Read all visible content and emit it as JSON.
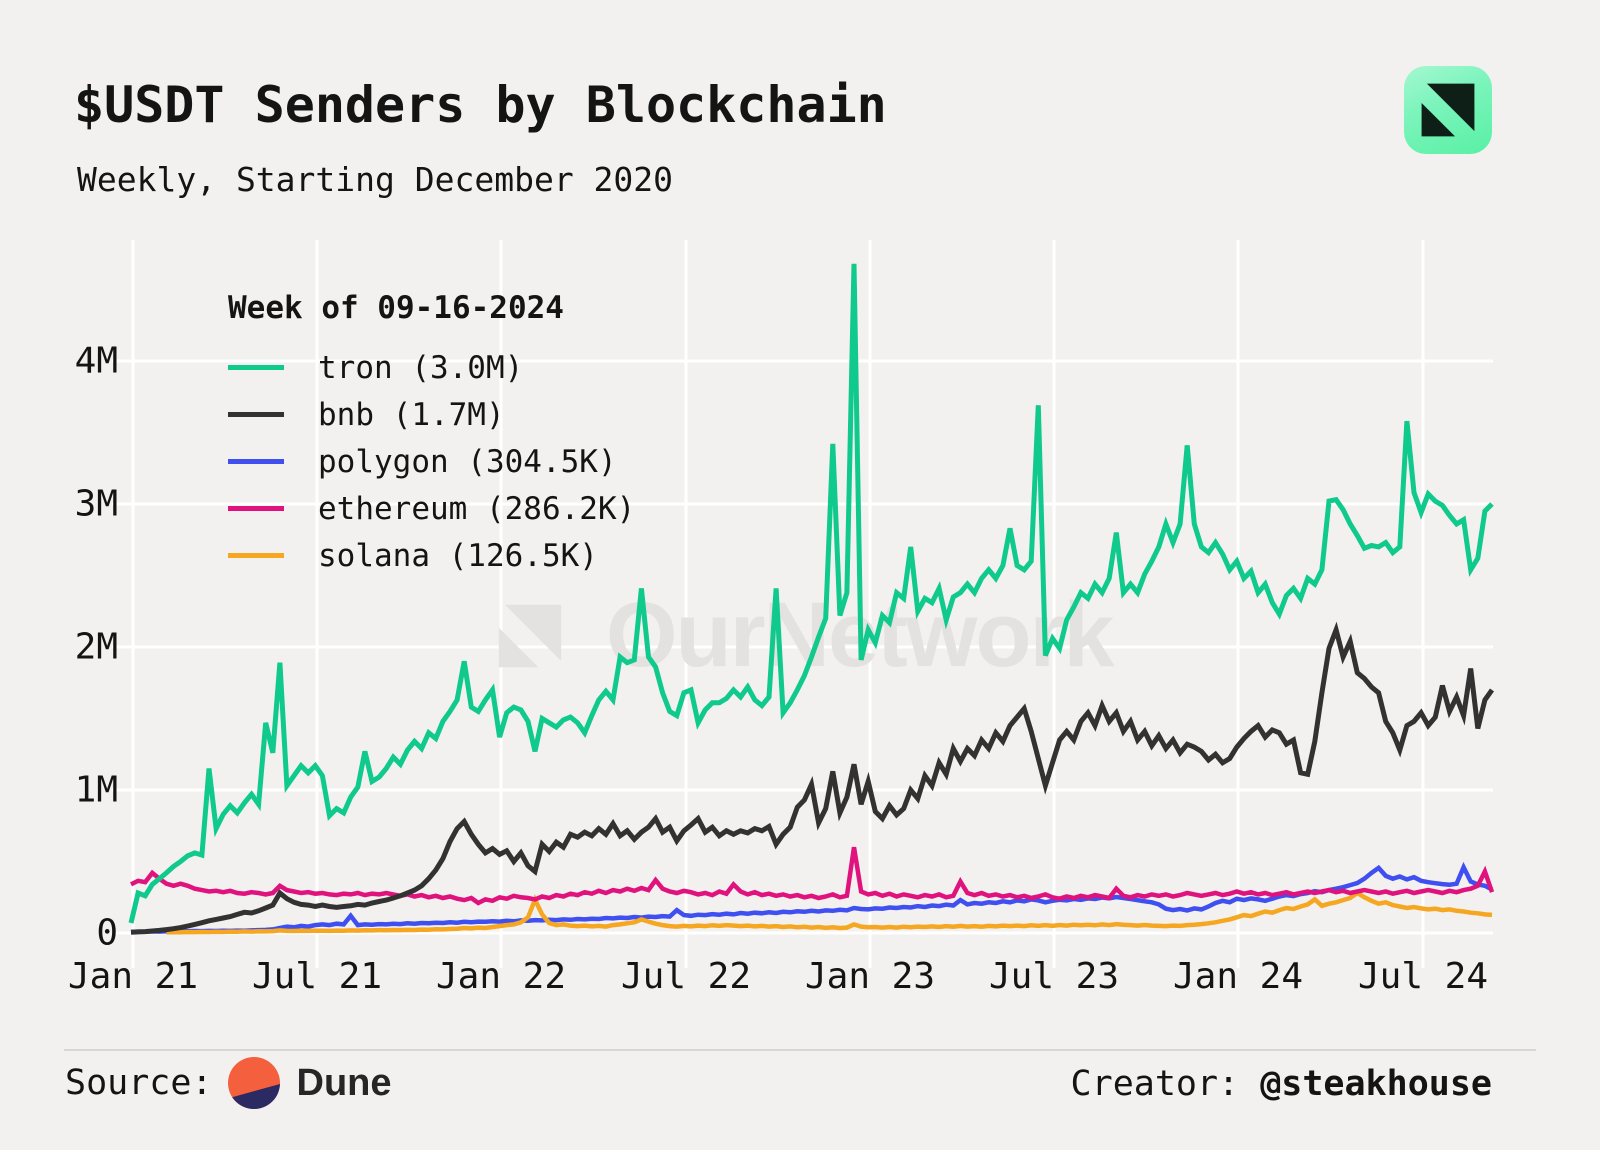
{
  "header": {
    "title": "$USDT Senders by Blockchain",
    "subtitle": "Weekly, Starting December 2020"
  },
  "watermark_text": "OurNetwork",
  "legend": {
    "title": "Week of 09-16-2024",
    "entries": [
      {
        "label": "tron (3.0M)",
        "series": "tron"
      },
      {
        "label": "bnb (1.7M)",
        "series": "bnb"
      },
      {
        "label": "polygon (304.5K)",
        "series": "polygon"
      },
      {
        "label": "ethereum (286.2K)",
        "series": "ethereum"
      },
      {
        "label": "solana (126.5K)",
        "series": "solana"
      }
    ]
  },
  "footer": {
    "source_label": "Source:",
    "source_name": "Dune",
    "creator_label": "Creator: ",
    "creator_handle": "@steakhouse"
  },
  "colors": {
    "background": "#f2f1ef",
    "gridline": "#ffffff",
    "text": "#141414",
    "watermark": "#e3e2e0",
    "logo_gradient_start": "#a5f8d1",
    "logo_gradient_end": "#58f0a4",
    "logo_glyph": "#0e1f18",
    "dune_orange": "#f4603e",
    "dune_navy": "#2b2a63",
    "divider": "#d7d6d4"
  },
  "chart_data": {
    "type": "line",
    "title": "$USDT Senders by Blockchain",
    "subtitle": "Weekly, Starting December 2020",
    "x_range_note": "Weekly points, Dec 2020 through week of 09-16-2024",
    "x_tick_labels": [
      "Jan 21",
      "Jul 21",
      "Jan 22",
      "Jul 22",
      "Jan 23",
      "Jul 23",
      "Jan 24",
      "Jul 24"
    ],
    "y_tick_labels": [
      "0",
      "1M",
      "2M",
      "3M",
      "4M"
    ],
    "ylim_thousands": [
      0,
      4850
    ],
    "values_unit": "thousands of senders",
    "grid": true,
    "legend_position": "upper-left",
    "series": [
      {
        "name": "tron",
        "color": "#10c98d",
        "final_value_label": "3.0M",
        "values": [
          70,
          280,
          260,
          340,
          380,
          420,
          465,
          500,
          540,
          560,
          545,
          1150,
          730,
          830,
          890,
          840,
          910,
          970,
          900,
          1470,
          1260,
          1890,
          1030,
          1100,
          1170,
          1120,
          1170,
          1100,
          820,
          870,
          840,
          950,
          1020,
          1270,
          1060,
          1090,
          1150,
          1230,
          1180,
          1280,
          1340,
          1290,
          1400,
          1360,
          1480,
          1550,
          1630,
          1900,
          1580,
          1550,
          1630,
          1700,
          1370,
          1540,
          1580,
          1560,
          1480,
          1270,
          1500,
          1470,
          1440,
          1490,
          1510,
          1470,
          1400,
          1520,
          1630,
          1690,
          1630,
          1930,
          1890,
          1910,
          2410,
          1930,
          1860,
          1680,
          1550,
          1520,
          1680,
          1700,
          1470,
          1560,
          1610,
          1610,
          1640,
          1700,
          1650,
          1720,
          1630,
          1590,
          1650,
          2410,
          1540,
          1610,
          1700,
          1800,
          1930,
          2070,
          2200,
          3420,
          2220,
          2380,
          4680,
          1910,
          2120,
          2030,
          2220,
          2170,
          2380,
          2340,
          2700,
          2250,
          2340,
          2310,
          2410,
          2190,
          2350,
          2380,
          2440,
          2380,
          2480,
          2540,
          2480,
          2570,
          2830,
          2570,
          2540,
          2600,
          3690,
          1940,
          2060,
          1990,
          2190,
          2280,
          2380,
          2340,
          2440,
          2380,
          2480,
          2800,
          2380,
          2440,
          2380,
          2510,
          2600,
          2700,
          2860,
          2730,
          2860,
          3410,
          2860,
          2700,
          2660,
          2730,
          2650,
          2540,
          2600,
          2480,
          2530,
          2380,
          2440,
          2310,
          2230,
          2360,
          2410,
          2340,
          2480,
          2440,
          2540,
          3020,
          3030,
          2960,
          2860,
          2780,
          2690,
          2710,
          2700,
          2730,
          2660,
          2700,
          3580,
          3080,
          2940,
          3070,
          3020,
          2990,
          2920,
          2860,
          2890,
          2540,
          2620,
          2950,
          3000
        ]
      },
      {
        "name": "bnb",
        "color": "#323232",
        "final_value_label": "1.7M",
        "values": [
          5,
          8,
          10,
          14,
          18,
          24,
          30,
          38,
          48,
          60,
          72,
          85,
          95,
          105,
          115,
          130,
          145,
          140,
          155,
          175,
          195,
          280,
          240,
          215,
          200,
          195,
          185,
          195,
          185,
          180,
          185,
          190,
          200,
          195,
          210,
          220,
          230,
          245,
          260,
          280,
          300,
          330,
          380,
          440,
          520,
          640,
          730,
          780,
          690,
          620,
          560,
          590,
          550,
          575,
          500,
          560,
          470,
          430,
          620,
          570,
          635,
          600,
          690,
          670,
          705,
          680,
          730,
          690,
          765,
          680,
          715,
          655,
          705,
          740,
          800,
          705,
          740,
          645,
          715,
          755,
          800,
          705,
          740,
          680,
          715,
          690,
          715,
          700,
          730,
          715,
          745,
          620,
          690,
          740,
          880,
          930,
          1040,
          770,
          870,
          1130,
          840,
          950,
          1180,
          900,
          1060,
          850,
          800,
          890,
          825,
          870,
          1000,
          940,
          1100,
          1030,
          1190,
          1110,
          1290,
          1200,
          1290,
          1240,
          1350,
          1290,
          1400,
          1340,
          1450,
          1510,
          1570,
          1410,
          1220,
          1030,
          1190,
          1350,
          1410,
          1350,
          1480,
          1540,
          1450,
          1590,
          1480,
          1540,
          1410,
          1480,
          1350,
          1410,
          1310,
          1380,
          1290,
          1350,
          1260,
          1320,
          1300,
          1270,
          1210,
          1250,
          1190,
          1220,
          1300,
          1360,
          1410,
          1450,
          1370,
          1420,
          1400,
          1320,
          1350,
          1120,
          1110,
          1340,
          1680,
          1990,
          2120,
          1930,
          2040,
          1820,
          1780,
          1720,
          1680,
          1480,
          1400,
          1280,
          1450,
          1480,
          1540,
          1450,
          1510,
          1730,
          1550,
          1650,
          1520,
          1850,
          1430,
          1630,
          1700
        ]
      },
      {
        "name": "polygon",
        "color": "#3f4ff0",
        "final_value_label": "304.5K",
        "values": [
          8,
          10,
          9,
          11,
          10,
          12,
          11,
          13,
          12,
          14,
          13,
          15,
          14,
          16,
          15,
          17,
          16,
          18,
          20,
          22,
          25,
          35,
          45,
          40,
          50,
          45,
          55,
          60,
          55,
          65,
          60,
          120,
          55,
          60,
          58,
          62,
          60,
          65,
          62,
          68,
          65,
          70,
          68,
          72,
          70,
          75,
          72,
          78,
          75,
          80,
          78,
          82,
          80,
          85,
          82,
          88,
          85,
          90,
          88,
          92,
          90,
          95,
          92,
          98,
          95,
          100,
          98,
          105,
          102,
          108,
          105,
          112,
          108,
          115,
          112,
          118,
          115,
          160,
          125,
          120,
          128,
          125,
          132,
          128,
          135,
          130,
          140,
          135,
          142,
          138,
          145,
          140,
          148,
          145,
          152,
          148,
          155,
          150,
          158,
          155,
          162,
          158,
          175,
          168,
          165,
          172,
          170,
          178,
          175,
          182,
          178,
          188,
          182,
          192,
          188,
          198,
          192,
          230,
          200,
          210,
          205,
          215,
          210,
          222,
          215,
          228,
          222,
          235,
          228,
          215,
          225,
          232,
          228,
          238,
          232,
          242,
          238,
          248,
          242,
          252,
          245,
          238,
          230,
          222,
          215,
          200,
          170,
          160,
          168,
          158,
          172,
          165,
          185,
          210,
          225,
          215,
          240,
          230,
          242,
          235,
          225,
          240,
          255,
          265,
          258,
          272,
          280,
          292,
          285,
          300,
          310,
          320,
          335,
          350,
          380,
          420,
          455,
          400,
          380,
          395,
          375,
          390,
          365,
          355,
          348,
          342,
          338,
          345,
          460,
          360,
          340,
          330,
          304.5
        ]
      },
      {
        "name": "ethereum",
        "color": "#e0137e",
        "final_value_label": "286.2K",
        "values": [
          340,
          365,
          355,
          420,
          380,
          345,
          330,
          345,
          330,
          310,
          300,
          290,
          295,
          285,
          295,
          280,
          275,
          285,
          280,
          270,
          280,
          330,
          300,
          290,
          280,
          285,
          275,
          280,
          270,
          265,
          275,
          270,
          280,
          265,
          275,
          270,
          280,
          270,
          260,
          270,
          255,
          265,
          250,
          260,
          245,
          255,
          240,
          230,
          245,
          210,
          235,
          225,
          250,
          240,
          260,
          250,
          245,
          235,
          255,
          245,
          265,
          255,
          275,
          265,
          285,
          275,
          295,
          280,
          300,
          290,
          310,
          295,
          315,
          300,
          370,
          310,
          290,
          280,
          295,
          285,
          270,
          280,
          265,
          290,
          275,
          340,
          290,
          270,
          285,
          265,
          275,
          260,
          270,
          255,
          265,
          250,
          260,
          245,
          255,
          270,
          250,
          260,
          600,
          290,
          270,
          280,
          260,
          275,
          255,
          270,
          260,
          250,
          265,
          255,
          270,
          250,
          260,
          360,
          280,
          265,
          280,
          260,
          270,
          255,
          265,
          250,
          260,
          245,
          255,
          270,
          250,
          240,
          255,
          245,
          260,
          250,
          265,
          255,
          245,
          310,
          260,
          250,
          265,
          255,
          270,
          260,
          270,
          255,
          265,
          280,
          270,
          260,
          270,
          280,
          265,
          275,
          290,
          275,
          285,
          270,
          280,
          265,
          275,
          285,
          270,
          280,
          290,
          280,
          290,
          300,
          285,
          295,
          280,
          290,
          300,
          290,
          280,
          290,
          275,
          285,
          295,
          280,
          290,
          300,
          290,
          280,
          295,
          285,
          300,
          310,
          330,
          430,
          286.2
        ]
      },
      {
        "name": "solana",
        "color": "#f6a722",
        "final_value_label": "126.5K",
        "values": [
          null,
          null,
          null,
          null,
          null,
          5,
          6,
          5,
          7,
          6,
          8,
          7,
          9,
          8,
          10,
          9,
          11,
          10,
          12,
          11,
          13,
          18,
          15,
          14,
          16,
          15,
          17,
          16,
          15,
          17,
          16,
          18,
          17,
          19,
          18,
          20,
          19,
          21,
          20,
          22,
          21,
          24,
          23,
          26,
          25,
          28,
          30,
          35,
          32,
          38,
          35,
          42,
          48,
          55,
          60,
          75,
          110,
          233,
          130,
          70,
          55,
          60,
          52,
          48,
          52,
          46,
          50,
          45,
          55,
          60,
          68,
          75,
          95,
          80,
          65,
          55,
          48,
          45,
          50,
          46,
          52,
          48,
          54,
          50,
          55,
          52,
          48,
          52,
          46,
          50,
          45,
          48,
          42,
          46,
          40,
          44,
          38,
          42,
          36,
          40,
          35,
          38,
          60,
          45,
          40,
          42,
          38,
          42,
          38,
          44,
          40,
          45,
          42,
          46,
          42,
          48,
          44,
          50,
          45,
          48,
          44,
          50,
          46,
          52,
          48,
          52,
          48,
          54,
          50,
          55,
          50,
          56,
          52,
          58,
          54,
          58,
          54,
          60,
          55,
          62,
          58,
          55,
          52,
          56,
          52,
          50,
          48,
          52,
          50,
          55,
          58,
          62,
          68,
          75,
          85,
          95,
          110,
          125,
          118,
          135,
          150,
          142,
          160,
          175,
          168,
          185,
          200,
          235,
          190,
          205,
          215,
          230,
          245,
          280,
          250,
          225,
          205,
          215,
          195,
          185,
          175,
          182,
          172,
          165,
          170,
          160,
          165,
          155,
          150,
          142,
          138,
          130,
          126.5
        ]
      }
    ]
  }
}
